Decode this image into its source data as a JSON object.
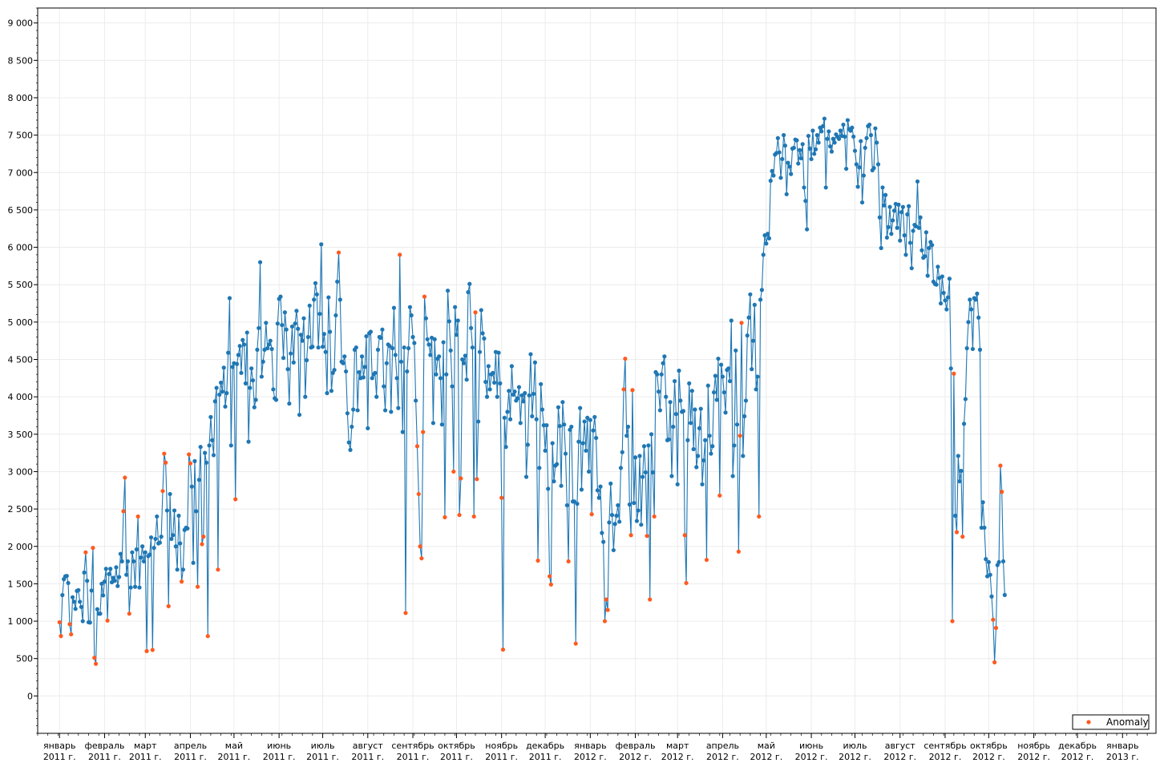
{
  "chart_data": {
    "type": "line",
    "title": "",
    "xlabel": "",
    "ylabel": "",
    "ylim": [
      -500,
      9200
    ],
    "yticks": [
      0,
      500,
      1000,
      1500,
      2000,
      2500,
      3000,
      3500,
      4000,
      4500,
      5000,
      5500,
      6000,
      6500,
      7000,
      7500,
      8000,
      8500,
      9000
    ],
    "ytick_labels": [
      "0",
      "500",
      "1 000",
      "1 500",
      "2 000",
      "2 500",
      "3 000",
      "3 500",
      "4 000",
      "4 500",
      "5 000",
      "5 500",
      "6 000",
      "6 500",
      "7 000",
      "7 500",
      "8 000",
      "8 500",
      "9 000"
    ],
    "xlim": [
      "2010-12-17",
      "2013-01-24"
    ],
    "xticks": [
      "2011-01-01",
      "2011-02-01",
      "2011-03-01",
      "2011-04-01",
      "2011-05-01",
      "2011-06-01",
      "2011-07-01",
      "2011-08-01",
      "2011-09-01",
      "2011-10-01",
      "2011-11-01",
      "2011-12-01",
      "2012-01-01",
      "2012-02-01",
      "2012-03-01",
      "2012-04-01",
      "2012-05-01",
      "2012-06-01",
      "2012-07-01",
      "2012-08-01",
      "2012-09-01",
      "2012-10-01",
      "2012-11-01",
      "2012-12-01",
      "2013-01-01"
    ],
    "xtick_labels": [
      [
        "январь",
        "2011 г."
      ],
      [
        "февраль",
        "2011 г."
      ],
      [
        "март",
        "2011 г."
      ],
      [
        "апрель",
        "2011 г."
      ],
      [
        "май",
        "2011 г."
      ],
      [
        "июнь",
        "2011 г."
      ],
      [
        "июль",
        "2011 г."
      ],
      [
        "август",
        "2011 г."
      ],
      [
        "сентябрь",
        "2011 г."
      ],
      [
        "октябрь",
        "2011 г."
      ],
      [
        "ноябрь",
        "2011 г."
      ],
      [
        "декабрь",
        "2011 г."
      ],
      [
        "январь",
        "2012 г."
      ],
      [
        "февраль",
        "2012 г."
      ],
      [
        "март",
        "2012 г."
      ],
      [
        "апрель",
        "2012 г."
      ],
      [
        "май",
        "2012 г."
      ],
      [
        "июнь",
        "2012 г."
      ],
      [
        "июль",
        "2012 г."
      ],
      [
        "август",
        "2012 г."
      ],
      [
        "сентябрь",
        "2012 г."
      ],
      [
        "октябрь",
        "2012 г."
      ],
      [
        "ноябрь",
        "2012 г."
      ],
      [
        "декабрь",
        "2012 г."
      ],
      [
        "январь",
        "2013 г."
      ]
    ],
    "grid": true,
    "legend": {
      "position": "bottom-right",
      "entries": [
        "Anomaly"
      ]
    },
    "colors": {
      "series": "#1f77b4",
      "anomaly": "#ff5a1f"
    },
    "series": [
      {
        "start_date": "2011-01-01",
        "step_days": 1,
        "values": [
          985,
          801,
          1349,
          1562,
          1600,
          1605,
          1510,
          960,
          824,
          1320,
          1260,
          1165,
          1405,
          1415,
          1260,
          1190,
          1000,
          1650,
          1920,
          1540,
          985,
          982,
          1410,
          1980,
          510,
          430,
          1160,
          1100,
          1100,
          1500,
          1345,
          1530,
          1700,
          1008,
          1630,
          1700,
          1520,
          1580,
          1540,
          1720,
          1470,
          1590,
          1900,
          1800,
          2470,
          2920,
          1620,
          1800,
          1100,
          1450,
          1920,
          1800,
          1460,
          1960,
          2400,
          1450,
          1850,
          2000,
          1800,
          1920,
          600,
          1870,
          1890,
          2120,
          615,
          1980,
          2100,
          2400,
          2040,
          2050,
          2130,
          2740,
          3240,
          3120,
          2480,
          1200,
          2700,
          2100,
          2150,
          2480,
          2000,
          1690,
          2410,
          2040,
          1530,
          1690,
          2220,
          2250,
          2240,
          3230,
          3110,
          2800,
          1780,
          3140,
          2470,
          1460,
          2890,
          3330,
          2030,
          2130,
          3250,
          3120,
          800,
          3350,
          3730,
          3420,
          3220,
          3940,
          4120,
          1690,
          4030,
          4190,
          4070,
          4390,
          3870,
          4050,
          4590,
          5320,
          3350,
          4400,
          4450,
          2630,
          4440,
          4560,
          4680,
          4320,
          4760,
          4700,
          4180,
          4860,
          3400,
          4120,
          4380,
          4220,
          3860,
          3960,
          4630,
          4920,
          5800,
          4270,
          4470,
          4630,
          4990,
          4650,
          4700,
          4750,
          4640,
          4100,
          3980,
          3960,
          4980,
          5310,
          5340,
          4960,
          4520,
          5130,
          4900,
          4370,
          3910,
          4580,
          4940,
          4460,
          4980,
          5150,
          4910,
          3760,
          4830,
          4750,
          5050,
          4000,
          4490,
          4800,
          5220,
          4660,
          4670,
          5300,
          5520,
          5370,
          4660,
          5110,
          6040,
          4670,
          4840,
          4600,
          4050,
          5330,
          4870,
          4080,
          4320,
          4360,
          5090,
          5540,
          5930,
          5300,
          4470,
          4450,
          4540,
          4340,
          3780,
          3390,
          3290,
          3600,
          3830,
          4630,
          4660,
          3820,
          4330,
          4250,
          4540,
          4260,
          4400,
          4810,
          3580,
          4850,
          4870,
          4250,
          4300,
          4320,
          4000,
          4630,
          4800,
          4790,
          4900,
          4140,
          3820,
          4450,
          4700,
          4680,
          3800,
          4650,
          5190,
          4560,
          4250,
          3850,
          5900,
          4470,
          3530,
          4660,
          1110,
          4340,
          4650,
          5200,
          5090,
          4800,
          4720,
          3950,
          3340,
          2700,
          2000,
          1840,
          3530,
          5340,
          5050,
          4770,
          4700,
          4560,
          4790,
          3650,
          4770,
          4300,
          4510,
          4540,
          4250,
          3630,
          4730,
          2390,
          4300,
          5420,
          5010,
          4620,
          4140,
          3000,
          5200,
          4830,
          5020,
          2420,
          2910,
          4500,
          4450,
          4550,
          4230,
          5400,
          5510,
          4920,
          4660,
          2400,
          5130,
          2900,
          3670,
          4600,
          5160,
          4850,
          4780,
          4200,
          4000,
          4410,
          4100,
          4300,
          4320,
          4190,
          4600,
          4000,
          4590,
          4180,
          2650,
          620,
          3720,
          3330,
          3800,
          4080,
          3700,
          4410,
          4030,
          4070,
          3950,
          3980,
          4130,
          3650,
          4020,
          3940,
          4050,
          2930,
          3360,
          4020,
          4570,
          3740,
          4040,
          4460,
          3700,
          1810,
          3050,
          4170,
          3830,
          3620,
          3280,
          3620,
          2770,
          1600,
          1490,
          3380,
          2870,
          3080,
          3100,
          3860,
          3610,
          2810,
          3930,
          3630,
          3240,
          2550,
          1800,
          3560,
          3600,
          2600,
          2600,
          700,
          2570,
          3400,
          3850,
          2760,
          3380,
          3670,
          3280,
          3720,
          3000,
          3690,
          2430,
          3550,
          3730,
          3450,
          2750,
          2650,
          2800,
          2180,
          2060,
          1000,
          1290,
          1150,
          2320,
          2840,
          2420,
          1950,
          2300,
          2410,
          2550,
          2330,
          3050,
          3260,
          4100,
          4510,
          3480,
          3600,
          2560,
          2150,
          4090,
          2580,
          3190,
          2340,
          2480,
          3210,
          2290,
          2930,
          3340,
          2990,
          2140,
          3350,
          1290,
          3500,
          2990,
          2400,
          4330,
          4300,
          4070,
          3820,
          4300,
          4450,
          4540,
          4000,
          3420,
          3430,
          3930,
          2940,
          3600,
          4210,
          3770,
          2830,
          4350,
          3950,
          3800,
          3810,
          2150,
          1510,
          3420,
          4180,
          3650,
          4080,
          3300,
          3830,
          3060,
          3210,
          3580,
          3840,
          2830,
          3150,
          3420,
          1820,
          4150,
          3480,
          3240,
          3340,
          4060,
          4280,
          3960,
          4510,
          2680,
          4430,
          4270,
          4060,
          3790,
          4360,
          4380,
          4210,
          5020,
          2940,
          3350,
          4620,
          3630,
          1930,
          3480,
          4990,
          3210,
          3740,
          3950,
          4820,
          5060,
          5370,
          4370,
          4750,
          5230,
          4100,
          4270,
          2400,
          5300,
          5430,
          5900,
          6160,
          6050,
          6180,
          6120,
          6890,
          7020,
          6960,
          7240,
          7260,
          7460,
          7270,
          6930,
          7180,
          7500,
          7360,
          6710,
          7130,
          7080,
          6980,
          7320,
          7330,
          7440,
          7430,
          7120,
          7300,
          7190,
          7380,
          6800,
          6620,
          6240,
          7490,
          7320,
          7180,
          7560,
          7250,
          7310,
          7500,
          7400,
          7600,
          7550,
          7620,
          7720,
          6800,
          7450,
          7550,
          7350,
          7280,
          7450,
          7400,
          7510,
          7480,
          7450,
          7560,
          7490,
          7640,
          7480,
          7050,
          7700,
          7580,
          7560,
          7600,
          7480,
          7290,
          7110,
          6810,
          7070,
          7420,
          6600,
          6960,
          7330,
          7460,
          7620,
          7640,
          7500,
          7030,
          7060,
          7590,
          7400,
          7110,
          6400,
          5990,
          6800,
          6560,
          6700,
          6130,
          6270,
          6540,
          6180,
          6360,
          6490,
          6580,
          6260,
          6570,
          6090,
          6470,
          6540,
          6160,
          5900,
          6440,
          6550,
          6060,
          5720,
          6220,
          6300,
          6280,
          6880,
          6260,
          6400,
          5960,
          5860,
          5880,
          6200,
          5620,
          5990,
          6070,
          6030,
          5540,
          5510,
          5500,
          5740,
          5590,
          5250,
          5610,
          5390,
          5290,
          5170,
          5330,
          5580,
          4380,
          1000,
          4310,
          2410,
          2190,
          3210,
          2870,
          3010,
          2130,
          3640,
          3970,
          4650,
          5000,
          5300,
          5170,
          4640,
          5320,
          5300,
          5380,
          5060,
          4630,
          2250,
          2590,
          2250,
          1830,
          1600,
          1790,
          1620,
          1330,
          1020,
          450,
          910,
          1750,
          1790,
          3080,
          2730,
          1800,
          1350
        ]
      }
    ]
  }
}
